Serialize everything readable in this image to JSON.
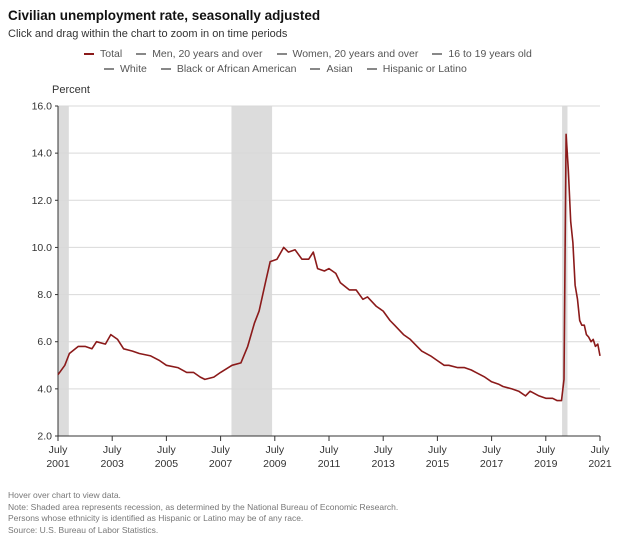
{
  "title": "Civilian unemployment rate, seasonally adjusted",
  "subtitle": "Click and drag within the chart to zoom in on time periods",
  "legend": {
    "row1": [
      "Total",
      "Men, 20 years and over",
      "Women, 20 years and over",
      "16 to 19 years old"
    ],
    "row2": [
      "White",
      "Black or African American",
      "Asian",
      "Hispanic or Latino"
    ]
  },
  "notes": [
    "Hover over chart to view data.",
    "Note: Shaded area represents recession, as determined by the National Bureau of Economic Research.",
    "Persons whose ethnicity is identified as Hispanic or Latino may be of any race.",
    "Source: U.S. Bureau of Labor Statistics."
  ],
  "colors": {
    "line": "#8b1a1a",
    "recession": "#dcdcdc",
    "grid": "#d9d9d9",
    "axis": "#333333"
  },
  "chart_data": {
    "type": "line",
    "title": "Civilian unemployment rate, seasonally adjusted",
    "ylabel": "Percent",
    "xlabel": "",
    "ylim": [
      2.0,
      16.0
    ],
    "xlim": [
      2001.5,
      2021.5
    ],
    "grid": true,
    "yticks": [
      "2.0",
      "4.0",
      "6.0",
      "8.0",
      "10.0",
      "12.0",
      "14.0",
      "16.0"
    ],
    "xticks": [
      {
        "top": "July",
        "bottom": "2001",
        "x": 2001.5
      },
      {
        "top": "July",
        "bottom": "2003",
        "x": 2003.5
      },
      {
        "top": "July",
        "bottom": "2005",
        "x": 2005.5
      },
      {
        "top": "July",
        "bottom": "2007",
        "x": 2007.5
      },
      {
        "top": "July",
        "bottom": "2009",
        "x": 2009.5
      },
      {
        "top": "July",
        "bottom": "2011",
        "x": 2011.5
      },
      {
        "top": "July",
        "bottom": "2013",
        "x": 2013.5
      },
      {
        "top": "July",
        "bottom": "2015",
        "x": 2015.5
      },
      {
        "top": "July",
        "bottom": "2017",
        "x": 2017.5
      },
      {
        "top": "July",
        "bottom": "2019",
        "x": 2019.5
      },
      {
        "top": "July",
        "bottom": "2021",
        "x": 2021.5
      }
    ],
    "recessions": [
      [
        2001.5,
        2001.9
      ],
      [
        2007.9,
        2009.4
      ],
      [
        2020.1,
        2020.3
      ]
    ],
    "series": [
      {
        "name": "Total",
        "points": [
          [
            2001.5,
            4.6
          ],
          [
            2001.75,
            5.0
          ],
          [
            2001.92,
            5.5
          ],
          [
            2002.25,
            5.8
          ],
          [
            2002.5,
            5.8
          ],
          [
            2002.75,
            5.7
          ],
          [
            2002.92,
            6.0
          ],
          [
            2003.25,
            5.9
          ],
          [
            2003.45,
            6.3
          ],
          [
            2003.7,
            6.1
          ],
          [
            2003.92,
            5.7
          ],
          [
            2004.25,
            5.6
          ],
          [
            2004.5,
            5.5
          ],
          [
            2004.92,
            5.4
          ],
          [
            2005.25,
            5.2
          ],
          [
            2005.5,
            5.0
          ],
          [
            2005.92,
            4.9
          ],
          [
            2006.25,
            4.7
          ],
          [
            2006.5,
            4.7
          ],
          [
            2006.75,
            4.5
          ],
          [
            2006.92,
            4.4
          ],
          [
            2007.25,
            4.5
          ],
          [
            2007.5,
            4.7
          ],
          [
            2007.92,
            5.0
          ],
          [
            2008.25,
            5.1
          ],
          [
            2008.5,
            5.8
          ],
          [
            2008.75,
            6.8
          ],
          [
            2008.92,
            7.3
          ],
          [
            2009.17,
            8.6
          ],
          [
            2009.33,
            9.4
          ],
          [
            2009.58,
            9.5
          ],
          [
            2009.83,
            10.0
          ],
          [
            2010.0,
            9.8
          ],
          [
            2010.25,
            9.9
          ],
          [
            2010.5,
            9.5
          ],
          [
            2010.75,
            9.5
          ],
          [
            2010.92,
            9.8
          ],
          [
            2011.08,
            9.1
          ],
          [
            2011.33,
            9.0
          ],
          [
            2011.5,
            9.1
          ],
          [
            2011.75,
            8.9
          ],
          [
            2011.92,
            8.5
          ],
          [
            2012.25,
            8.2
          ],
          [
            2012.5,
            8.2
          ],
          [
            2012.75,
            7.8
          ],
          [
            2012.92,
            7.9
          ],
          [
            2013.25,
            7.5
          ],
          [
            2013.5,
            7.3
          ],
          [
            2013.75,
            6.9
          ],
          [
            2013.92,
            6.7
          ],
          [
            2014.25,
            6.3
          ],
          [
            2014.5,
            6.1
          ],
          [
            2014.75,
            5.8
          ],
          [
            2014.92,
            5.6
          ],
          [
            2015.25,
            5.4
          ],
          [
            2015.5,
            5.2
          ],
          [
            2015.75,
            5.0
          ],
          [
            2015.92,
            5.0
          ],
          [
            2016.25,
            4.9
          ],
          [
            2016.5,
            4.9
          ],
          [
            2016.75,
            4.8
          ],
          [
            2016.92,
            4.7
          ],
          [
            2017.25,
            4.5
          ],
          [
            2017.5,
            4.3
          ],
          [
            2017.75,
            4.2
          ],
          [
            2017.92,
            4.1
          ],
          [
            2018.25,
            4.0
          ],
          [
            2018.5,
            3.9
          ],
          [
            2018.75,
            3.7
          ],
          [
            2018.92,
            3.9
          ],
          [
            2019.25,
            3.7
          ],
          [
            2019.5,
            3.6
          ],
          [
            2019.75,
            3.6
          ],
          [
            2019.92,
            3.5
          ],
          [
            2020.08,
            3.5
          ],
          [
            2020.17,
            4.4
          ],
          [
            2020.25,
            14.8
          ],
          [
            2020.33,
            13.3
          ],
          [
            2020.42,
            11.1
          ],
          [
            2020.5,
            10.2
          ],
          [
            2020.58,
            8.4
          ],
          [
            2020.67,
            7.8
          ],
          [
            2020.75,
            6.9
          ],
          [
            2020.83,
            6.7
          ],
          [
            2020.92,
            6.7
          ],
          [
            2021.0,
            6.3
          ],
          [
            2021.08,
            6.2
          ],
          [
            2021.17,
            6.0
          ],
          [
            2021.25,
            6.1
          ],
          [
            2021.33,
            5.8
          ],
          [
            2021.42,
            5.9
          ],
          [
            2021.5,
            5.4
          ]
        ]
      }
    ]
  }
}
